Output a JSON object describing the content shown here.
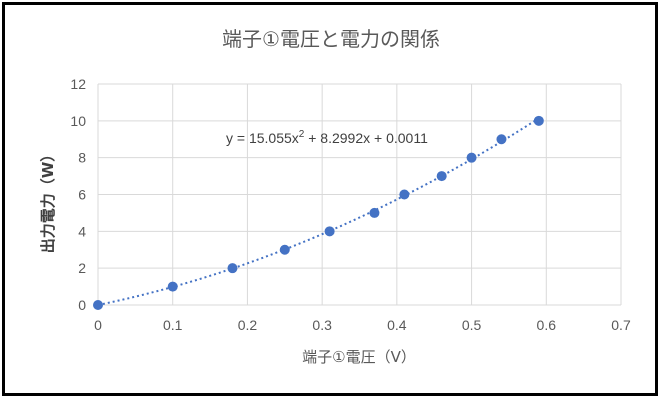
{
  "chart_data": {
    "type": "scatter",
    "title": "端子①電圧と電力の関係",
    "xlabel": "端子①電圧（V）",
    "ylabel": "出力電力（W）",
    "xlim": [
      0,
      0.7
    ],
    "ylim": [
      0,
      12
    ],
    "x_ticks": [
      "0",
      "0.1",
      "0.2",
      "0.3",
      "0.4",
      "0.5",
      "0.6",
      "0.7"
    ],
    "y_ticks": [
      "0",
      "2",
      "4",
      "6",
      "8",
      "10",
      "12"
    ],
    "grid": true,
    "legend": "none",
    "series": [
      {
        "x": [
          0,
          0.1,
          0.18,
          0.25,
          0.31,
          0.37,
          0.41,
          0.46,
          0.5,
          0.54,
          0.59
        ],
        "y": [
          0,
          1,
          2,
          3,
          4,
          5,
          6,
          7,
          8,
          9,
          10
        ],
        "color": "#4472c4"
      }
    ],
    "trendline": {
      "type": "polynomial",
      "coefficients": [
        15.055,
        8.2992,
        0.0011
      ],
      "style": "dotted",
      "color": "#4472c4",
      "equation_parts": {
        "prefix": "y = 15.055x",
        "exponent": "2",
        "suffix": " + 8.2992x + 0.0011"
      }
    }
  }
}
